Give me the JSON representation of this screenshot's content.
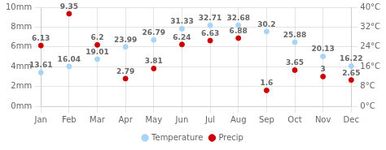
{
  "chart_data": {
    "type": "scatter",
    "categories": [
      "Jan",
      "Feb",
      "Mar",
      "Apr",
      "May",
      "Jun",
      "Jul",
      "Aug",
      "Sep",
      "Oct",
      "Nov",
      "Dec"
    ],
    "series": [
      {
        "name": "Temperature",
        "color": "#a8d4f5",
        "marker": "circle",
        "axis": "y2",
        "values": [
          13.61,
          16.04,
          19.01,
          23.99,
          26.79,
          31.33,
          32.71,
          32.68,
          30.2,
          25.88,
          20.13,
          16.22
        ]
      },
      {
        "name": "Precip",
        "color": "#cc0000",
        "marker": "circle",
        "values": [
          6.13,
          9.35,
          6.2,
          2.79,
          3.81,
          6.24,
          6.63,
          6.88,
          1.6,
          3.65,
          3.0,
          2.65
        ]
      }
    ],
    "ylim": [
      0,
      10
    ],
    "yticks": [
      {
        "value": 0,
        "label": "0mm"
      },
      {
        "value": 2,
        "label": "2mm"
      },
      {
        "value": 4,
        "label": "4mm"
      },
      {
        "value": 6,
        "label": "6mm"
      },
      {
        "value": 8,
        "label": "8mm"
      },
      {
        "value": 10,
        "label": "10mm"
      }
    ],
    "y2lim": [
      0,
      40
    ],
    "y2ticks": [
      {
        "value": 0,
        "label": "0°C"
      },
      {
        "value": 8,
        "label": "8°C"
      },
      {
        "value": 16,
        "label": "16°C"
      },
      {
        "value": 24,
        "label": "24°C"
      },
      {
        "value": 32,
        "label": "32°C"
      },
      {
        "value": 40,
        "label": "40°C"
      }
    ],
    "grid": true,
    "legend": "bottom",
    "data_labels": true
  }
}
